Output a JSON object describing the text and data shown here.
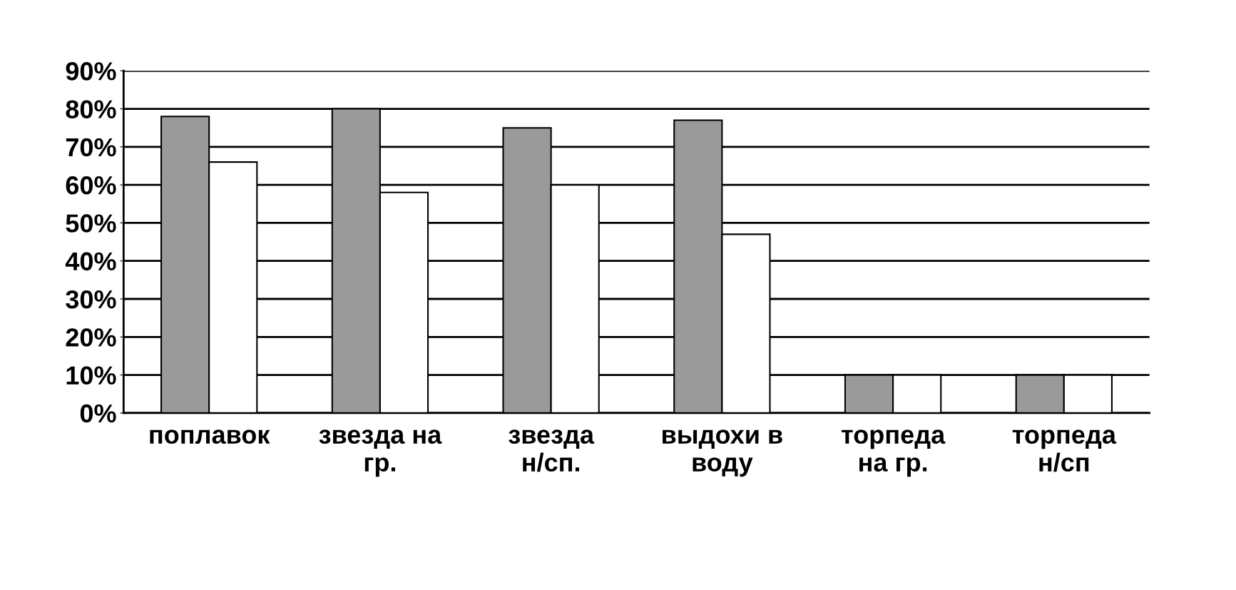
{
  "chart_data": {
    "type": "bar",
    "categories": [
      "поплавок",
      "звезда на\nгр.",
      "звезда\nн/сп.",
      "выдохи в\nводу",
      "торпеда\nна гр.",
      "торпеда\nн/сп"
    ],
    "series": [
      {
        "color": "#9a9a9a",
        "values": [
          78,
          80,
          75,
          77,
          10,
          10
        ]
      },
      {
        "color": "#ffffff",
        "values": [
          66,
          58,
          60,
          47,
          10,
          10
        ]
      }
    ],
    "ylim": [
      0,
      90
    ],
    "yticks": [
      {
        "value": 0,
        "label": "0%"
      },
      {
        "value": 10,
        "label": "10%"
      },
      {
        "value": 20,
        "label": "20%"
      },
      {
        "value": 30,
        "label": "30%"
      },
      {
        "value": 40,
        "label": "40%"
      },
      {
        "value": 50,
        "label": "50%"
      },
      {
        "value": 60,
        "label": "60%"
      },
      {
        "value": 70,
        "label": "70%"
      },
      {
        "value": 80,
        "label": "80%"
      },
      {
        "value": 90,
        "label": "90%"
      }
    ],
    "grid": "y"
  }
}
